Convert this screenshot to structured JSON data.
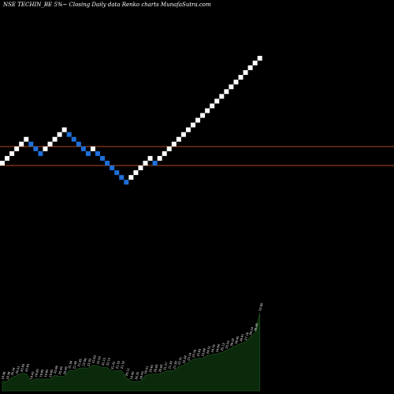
{
  "title": "NSE TECHIN_BE 5%~  Closing Daily data  Renko  charts MunafaSutra.com",
  "colors": {
    "background": "#000000",
    "up_brick": "#ffffff",
    "down_brick": "#1e6fd9",
    "reference_line": "#b04a1e",
    "volume_fill": "#0b2a0b",
    "volume_stroke": "#1f4a1f",
    "volume_label": "#ffffff"
  },
  "chart_data": {
    "type": "renko",
    "brick_sequence": [
      "up",
      "up",
      "up",
      "up",
      "up",
      "up",
      "down",
      "down",
      "down",
      "up",
      "up",
      "up",
      "up",
      "up",
      "down",
      "down",
      "down",
      "down",
      "down",
      "up",
      "down",
      "down",
      "down",
      "down",
      "down",
      "down",
      "down",
      "up",
      "up",
      "up",
      "up",
      "up",
      "down",
      "up",
      "up",
      "up",
      "up",
      "up",
      "up",
      "up",
      "up",
      "up",
      "up",
      "up",
      "up",
      "up",
      "up",
      "up",
      "up",
      "up",
      "up",
      "up",
      "up",
      "up",
      "up"
    ],
    "reference_levels": [
      22.4,
      21.5
    ],
    "closing_prices": [
      19.38,
      19.38,
      20.19,
      20.51,
      20.93,
      20.93,
      19.42,
      19.9,
      19.85,
      19.85,
      19.85,
      20.6,
      20.4,
      20.4,
      21.56,
      21.48,
      21.95,
      22.06,
      22.02,
      22.63,
      22.43,
      22.15,
      22.15,
      21.41,
      21.52,
      21.52,
      20.11,
      19.4,
      19.33,
      19.43,
      20.51,
      20.81,
      20.85,
      20.85,
      21.27,
      21.5,
      21.5,
      22.31,
      22.58,
      23.14,
      23.76,
      23.95,
      23.99,
      24.51,
      24.76,
      24.84,
      25.12,
      25.54,
      26.02,
      26.45,
      26.91,
      27.19,
      28.24,
      28.99,
      32.99
    ]
  }
}
